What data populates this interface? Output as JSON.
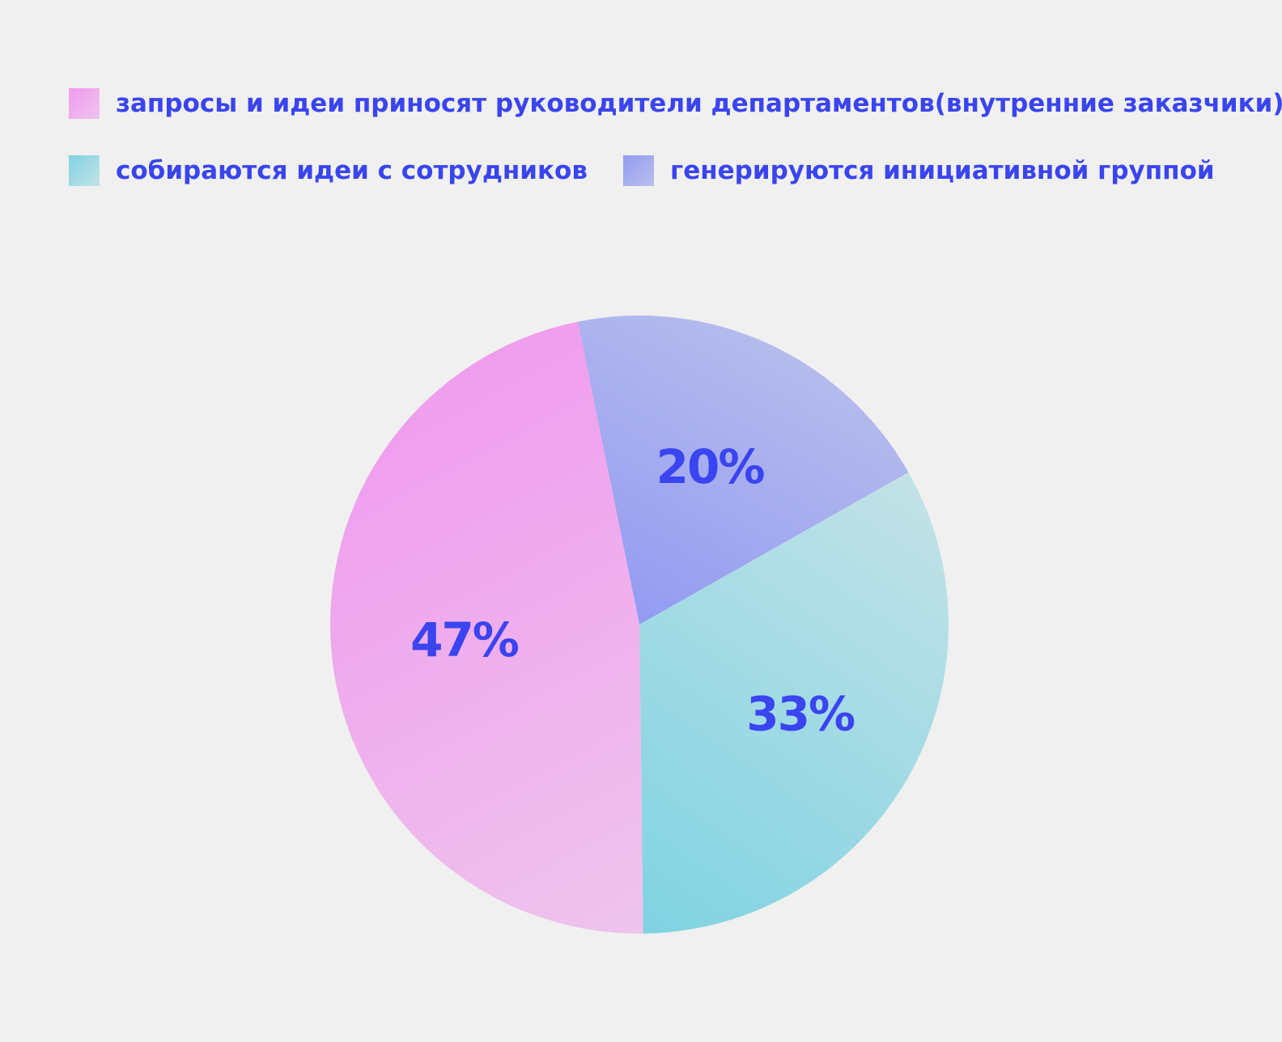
{
  "chart_data": {
    "type": "pie",
    "slices": [
      {
        "label": "запросы и идеи приносят руководители департаментов(внутренние заказчики)",
        "value": 47,
        "display": "47%",
        "color_start": "#f09aee",
        "color_end": "#eec4ec"
      },
      {
        "label": "собираются идеи с сотрудников",
        "value": 33,
        "display": "33%",
        "color_start": "#7fd3e2",
        "color_end": "#c4e2e7"
      },
      {
        "label": "генерируются инициативной группой",
        "value": 20,
        "display": "20%",
        "color_start": "#939bf2",
        "color_end": "#b9bfec"
      }
    ],
    "legend_position": "top",
    "label_color": "#3a44f0",
    "background": "#f0f0f0"
  }
}
